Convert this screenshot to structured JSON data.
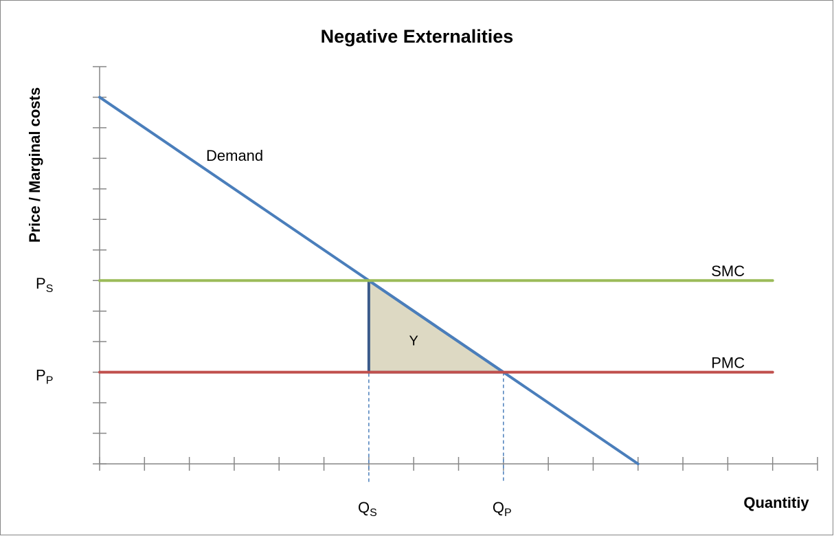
{
  "chart_data": {
    "type": "line",
    "title": "Negative Externalities",
    "x_label": "Quantitiy",
    "y_label": "Price / Marginal costs",
    "xlim": [
      0,
      16
    ],
    "ylim": [
      0,
      13
    ],
    "xticks": [
      0,
      1,
      2,
      3,
      4,
      5,
      6,
      7,
      8,
      9,
      10,
      11,
      12,
      13,
      14,
      15,
      16
    ],
    "yticks": [
      0,
      1,
      2,
      3,
      4,
      5,
      6,
      7,
      8,
      9,
      10,
      11,
      12,
      13
    ],
    "series": [
      {
        "name": "Demand",
        "color": "#4a7ebb",
        "x": [
          0,
          12
        ],
        "values": [
          12,
          0
        ]
      },
      {
        "name": "SMC",
        "color": "#9bbb59",
        "x": [
          0,
          15
        ],
        "values": [
          6,
          6
        ]
      },
      {
        "name": "PMC",
        "color": "#c0504d",
        "x": [
          0,
          15
        ],
        "values": [
          3,
          3
        ]
      }
    ],
    "areas": [
      {
        "name": "Y",
        "color": "#ddd9c3",
        "x": [
          6,
          6,
          9
        ],
        "values": [
          6,
          3,
          3
        ]
      }
    ],
    "price_labels": [
      {
        "text": "P",
        "subscript": "S",
        "value": 6
      },
      {
        "text": "P",
        "subscript": "P",
        "value": 3
      }
    ],
    "quantity_labels": [
      {
        "text": "Q",
        "subscript": "S",
        "value": 6
      },
      {
        "text": "Q",
        "subscript": "P",
        "value": 9
      }
    ]
  }
}
